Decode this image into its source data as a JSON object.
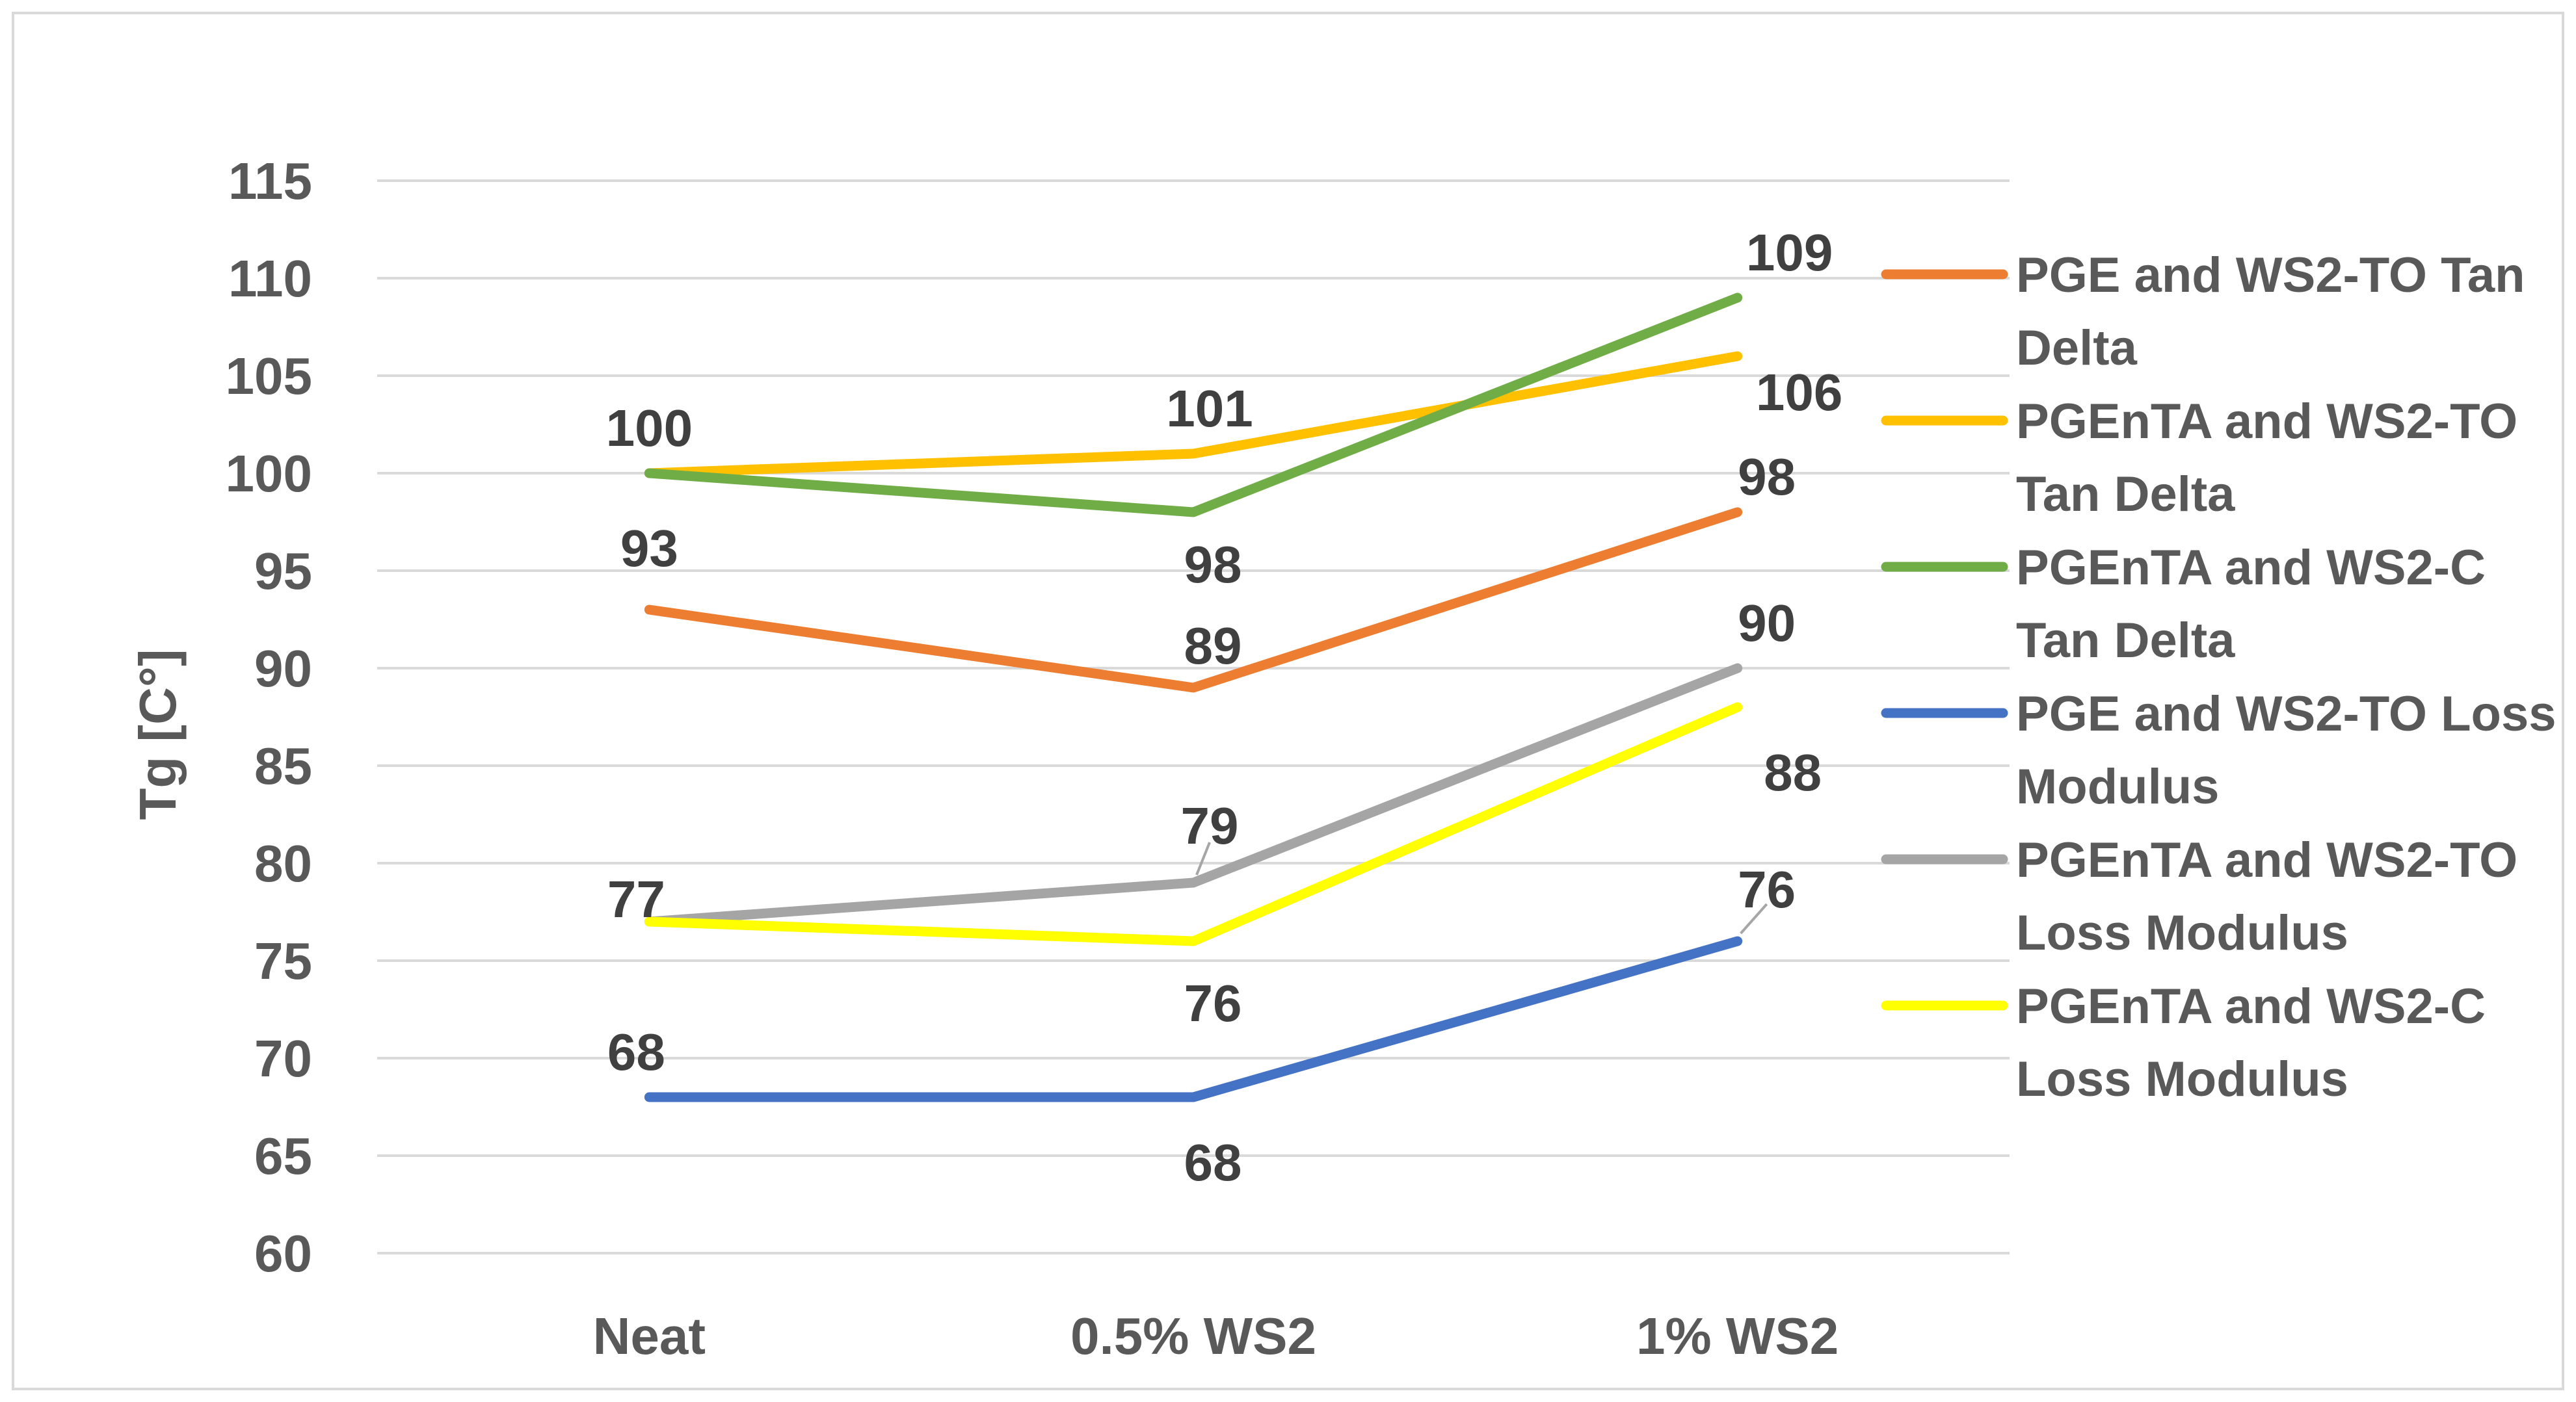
{
  "chart_data": {
    "type": "line",
    "title": "",
    "xlabel": "",
    "ylabel": "Tg [C°]",
    "ylim": [
      60,
      115
    ],
    "ytick_step": 5,
    "grid": true,
    "legend_position": "right",
    "categories": [
      "Neat",
      "0.5% WS2",
      "1% WS2"
    ],
    "series": [
      {
        "name": "PGE and WS2-TO Tan Delta",
        "legend_lines": [
          "PGE and WS2-TO Tan",
          "Delta"
        ],
        "color": "#ED7D31",
        "values": [
          93,
          89,
          98
        ]
      },
      {
        "name": "PGEnTA and WS2-TO Tan Delta",
        "legend_lines": [
          "PGEnTA and WS2-TO",
          "Tan Delta"
        ],
        "color": "#FFC000",
        "values": [
          100,
          101,
          106
        ]
      },
      {
        "name": "PGEnTA and WS2-C Tan Delta",
        "legend_lines": [
          "PGEnTA and WS2-C",
          "Tan Delta"
        ],
        "color": "#70AD47",
        "values": [
          100,
          98,
          109
        ]
      },
      {
        "name": "PGE and WS2-TO Loss Modulus",
        "legend_lines": [
          "PGE and WS2-TO Loss",
          "Modulus"
        ],
        "color": "#4472C4",
        "values": [
          68,
          68,
          76
        ]
      },
      {
        "name": "PGEnTA and WS2-TO Loss Modulus",
        "legend_lines": [
          "PGEnTA and WS2-TO",
          "Loss Modulus"
        ],
        "color": "#A5A5A5",
        "values": [
          77,
          79,
          90
        ]
      },
      {
        "name": "PGEnTA and WS2-C Loss Modulus",
        "legend_lines": [
          "PGEnTA and WS2-C",
          "Loss Modulus"
        ],
        "color": "#FFFF00",
        "values": [
          77,
          76,
          88
        ]
      }
    ],
    "data_labels": [
      {
        "series": 0,
        "point": 0,
        "text": "93"
      },
      {
        "series": 0,
        "point": 1,
        "text": "89"
      },
      {
        "series": 0,
        "point": 2,
        "text": "98"
      },
      {
        "series": 1,
        "point": 0,
        "text": "100"
      },
      {
        "series": 1,
        "point": 1,
        "text": "101"
      },
      {
        "series": 1,
        "point": 2,
        "text": "106"
      },
      {
        "series": 2,
        "point": 1,
        "text": "98"
      },
      {
        "series": 2,
        "point": 2,
        "text": "109"
      },
      {
        "series": 3,
        "point": 0,
        "text": "68"
      },
      {
        "series": 3,
        "point": 1,
        "text": "68"
      },
      {
        "series": 3,
        "point": 2,
        "text": "76"
      },
      {
        "series": 4,
        "point": 0,
        "text": "77"
      },
      {
        "series": 4,
        "point": 1,
        "text": "79"
      },
      {
        "series": 4,
        "point": 2,
        "text": "90"
      },
      {
        "series": 5,
        "point": 1,
        "text": "76"
      },
      {
        "series": 5,
        "point": 2,
        "text": "88"
      }
    ]
  }
}
